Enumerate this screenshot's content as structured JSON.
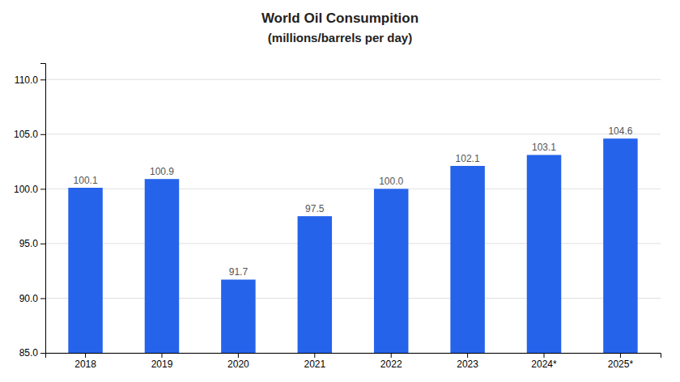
{
  "chart_data": {
    "type": "bar",
    "title": "World Oil Consumpition",
    "subtitle": "(millions/barrels per day)",
    "categories": [
      "2018",
      "2019",
      "2020",
      "2021",
      "2022",
      "2023",
      "2024*",
      "2025*"
    ],
    "values": [
      100.1,
      100.9,
      91.7,
      97.5,
      100.0,
      102.1,
      103.1,
      104.6
    ],
    "value_labels": [
      "100.1",
      "100.9",
      "91.7",
      "97.5",
      "100.0",
      "102.1",
      "103.1",
      "104.6"
    ],
    "data_labels": true,
    "color": "#2563EB",
    "ylim": [
      85.0,
      111.5
    ],
    "yticks": [
      {
        "value": 85.0,
        "label": "85.0"
      },
      {
        "value": 90.0,
        "label": "90.0"
      },
      {
        "value": 95.0,
        "label": "95.0"
      },
      {
        "value": 100.0,
        "label": "100.0"
      },
      {
        "value": 105.0,
        "label": "105.0"
      },
      {
        "value": 110.0,
        "label": "110.0"
      }
    ],
    "grid": true
  }
}
